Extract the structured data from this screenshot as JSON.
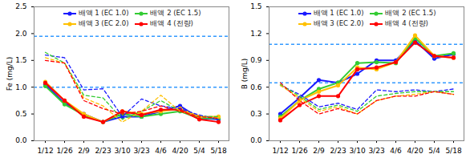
{
  "chart_data": [
    {
      "type": "line",
      "categories": [
        "1/12",
        "1/26",
        "2/9",
        "2/23",
        "3/10",
        "3/23",
        "4/6",
        "4/20",
        "5/4",
        "5/18"
      ],
      "y_label": "Fe (mg/L)",
      "ylim": [
        0,
        2.5
      ],
      "yticks": [
        {
          "value": 0,
          "label": "0.0"
        },
        {
          "value": 0.5,
          "label": "0.5"
        },
        {
          "value": 1,
          "label": "1.0"
        },
        {
          "value": 1.5,
          "label": "1.5"
        },
        {
          "value": 2,
          "label": "2.0"
        },
        {
          "value": 2.5,
          "label": "2.5"
        }
      ],
      "grid": false,
      "legend": "top",
      "hlines": [
        {
          "value": 1.95,
          "color": "#3399ff",
          "line_style": "dashed"
        },
        {
          "value": 1.0,
          "color": "#3399ff",
          "line_style": "dashed"
        }
      ],
      "series": [
        {
          "name": "배액 1 (EC 1.0)",
          "color": "#1a1aff",
          "marker": "circle",
          "line_style": "solid",
          "values": [
            1.05,
            0.7,
            0.5,
            0.35,
            0.45,
            0.45,
            0.55,
            0.65,
            0.42,
            0.4
          ]
        },
        {
          "name": "배액 2 (EC 1.5)",
          "color": "#33cc33",
          "marker": "circle",
          "line_style": "solid",
          "values": [
            1.02,
            0.68,
            0.48,
            0.35,
            0.5,
            0.45,
            0.5,
            0.55,
            0.42,
            0.42
          ]
        },
        {
          "name": "배액 3 (EC 2.0)",
          "color": "#ffc000",
          "marker": "circle",
          "line_style": "solid",
          "values": [
            1.1,
            0.75,
            0.5,
            0.35,
            0.55,
            0.5,
            0.55,
            0.6,
            0.45,
            0.45
          ]
        },
        {
          "name": "배액 4 (전량)",
          "color": "#ff0000",
          "marker": "circle",
          "line_style": "solid",
          "values": [
            1.08,
            0.75,
            0.45,
            0.35,
            0.55,
            0.48,
            0.58,
            0.58,
            0.4,
            0.35
          ]
        },
        {
          "color": "#1a1aff",
          "marker": "none",
          "line_style": "dashed",
          "values": [
            1.6,
            1.55,
            0.95,
            0.97,
            0.45,
            0.78,
            0.65,
            0.6,
            0.48,
            0.4
          ]
        },
        {
          "color": "#33cc33",
          "marker": "none",
          "line_style": "dashed",
          "values": [
            1.65,
            1.45,
            0.85,
            0.8,
            0.4,
            0.55,
            0.75,
            0.55,
            0.45,
            0.45
          ]
        },
        {
          "color": "#ffc000",
          "marker": "none",
          "line_style": "dashed",
          "values": [
            1.55,
            1.45,
            0.8,
            0.65,
            0.35,
            0.55,
            0.85,
            0.55,
            0.45,
            0.42
          ]
        },
        {
          "color": "#ff0000",
          "marker": "none",
          "line_style": "dashed",
          "values": [
            1.5,
            1.45,
            0.75,
            0.6,
            0.5,
            0.55,
            0.65,
            0.55,
            0.45,
            0.42
          ]
        }
      ]
    },
    {
      "type": "line",
      "categories": [
        "1/12",
        "1/26",
        "2/9",
        "2/23",
        "3/10",
        "3/23",
        "4/6",
        "4/20",
        "5/4",
        "5/18"
      ],
      "y_label": "B (mg/L)",
      "ylim": [
        0,
        1.5
      ],
      "yticks": [
        {
          "value": 0,
          "label": "0.0"
        },
        {
          "value": 0.3,
          "label": "0.3"
        },
        {
          "value": 0.6,
          "label": "0.6"
        },
        {
          "value": 0.9,
          "label": "0.9"
        },
        {
          "value": 1.2,
          "label": "1.2"
        },
        {
          "value": 1.5,
          "label": "1.5"
        }
      ],
      "grid": false,
      "legend": "top",
      "hlines": [
        {
          "value": 1.08,
          "color": "#3399ff",
          "line_style": "dashed"
        },
        {
          "value": 0.65,
          "color": "#3399ff",
          "line_style": "dashed"
        }
      ],
      "series": [
        {
          "name": "배액 1 (EC 1.0)",
          "color": "#1a1aff",
          "marker": "circle",
          "line_style": "solid",
          "values": [
            0.3,
            0.48,
            0.68,
            0.65,
            0.75,
            0.9,
            0.9,
            1.12,
            0.92,
            0.97
          ]
        },
        {
          "name": "배액 2 (EC 1.5)",
          "color": "#33cc33",
          "marker": "circle",
          "line_style": "solid",
          "values": [
            0.27,
            0.45,
            0.58,
            0.65,
            0.87,
            0.88,
            0.87,
            1.15,
            0.95,
            0.98
          ]
        },
        {
          "name": "배액 3 (EC 2.0)",
          "color": "#ffc000",
          "marker": "circle",
          "line_style": "solid",
          "values": [
            0.25,
            0.45,
            0.55,
            0.62,
            0.82,
            0.8,
            0.88,
            1.18,
            0.95,
            0.93
          ]
        },
        {
          "name": "배액 4 (전량)",
          "color": "#ff0000",
          "marker": "circle",
          "line_style": "solid",
          "values": [
            0.23,
            0.4,
            0.5,
            0.5,
            0.8,
            0.82,
            0.88,
            1.1,
            0.95,
            0.93
          ]
        },
        {
          "color": "#1a1aff",
          "marker": "none",
          "line_style": "dashed",
          "values": [
            0.62,
            0.52,
            0.38,
            0.42,
            0.35,
            0.57,
            0.55,
            0.57,
            0.55,
            0.58
          ]
        },
        {
          "color": "#33cc33",
          "marker": "none",
          "line_style": "dashed",
          "values": [
            0.63,
            0.5,
            0.35,
            0.4,
            0.33,
            0.5,
            0.53,
            0.55,
            0.55,
            0.55
          ]
        },
        {
          "color": "#ffc000",
          "marker": "none",
          "line_style": "dashed",
          "values": [
            0.62,
            0.48,
            0.33,
            0.38,
            0.3,
            0.45,
            0.5,
            0.52,
            0.55,
            0.52
          ]
        },
        {
          "color": "#ff0000",
          "marker": "none",
          "line_style": "dashed",
          "values": [
            0.65,
            0.45,
            0.3,
            0.36,
            0.3,
            0.45,
            0.5,
            0.5,
            0.55,
            0.52
          ]
        }
      ]
    }
  ]
}
